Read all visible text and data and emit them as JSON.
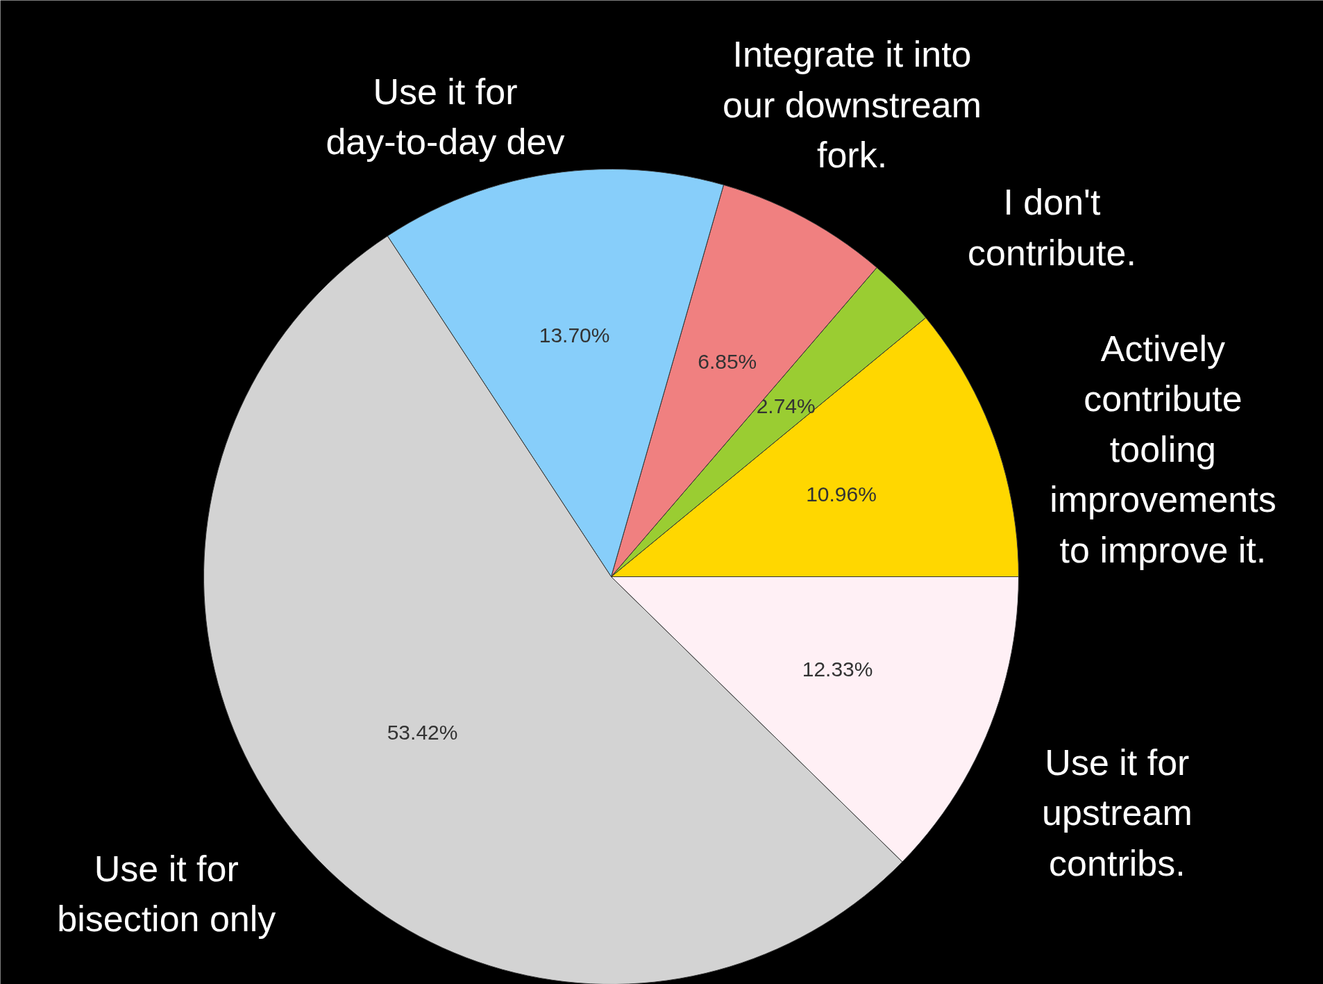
{
  "chart_data": {
    "type": "pie",
    "categories": [
      "Actively\ncontribute\ntooling\nimprovements\nto improve it.",
      "I don't\ncontribute.",
      "Integrate it into\nour downstream\nfork.",
      "Use it for\nday-to-day dev",
      "Use it for\nbisection only",
      "Use it for\nupstream\ncontribs."
    ],
    "values": [
      10.96,
      2.74,
      6.85,
      13.7,
      53.42,
      12.33
    ],
    "colors": [
      "#ffd700",
      "#9acd32",
      "#f08080",
      "#87cefa",
      "#d3d3d3",
      "#fff0f5"
    ],
    "value_labels": [
      "10.96%",
      "2.74%",
      "6.85%",
      "13.70%",
      "53.42%",
      "12.33%"
    ]
  }
}
